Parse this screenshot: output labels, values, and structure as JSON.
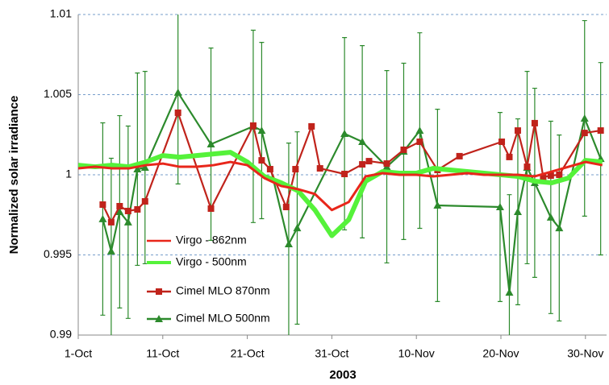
{
  "chart_data": {
    "type": "line",
    "x_label": "2003",
    "y_label": "Normalized solar irradiance",
    "xlim": [
      0,
      62.5
    ],
    "xticks": [
      {
        "value": 0,
        "label": "1-Oct"
      },
      {
        "value": 10,
        "label": "11-Oct"
      },
      {
        "value": 20,
        "label": "21-Oct"
      },
      {
        "value": 30,
        "label": "31-Oct"
      },
      {
        "value": 40,
        "label": "10-Nov"
      },
      {
        "value": 50,
        "label": "20-Nov"
      },
      {
        "value": 60,
        "label": "30-Nov"
      }
    ],
    "ylim": [
      0.99,
      1.01
    ],
    "yticks": [
      0.99,
      0.995,
      1,
      1.005,
      1.01
    ],
    "grid": true,
    "legend": "left",
    "series": [
      {
        "name": "Virgo - 862nm",
        "color": "#e8261a",
        "marker": "none",
        "x": [
          0,
          2,
          4,
          6,
          8,
          10,
          12,
          14,
          16,
          18,
          20,
          22,
          24,
          26,
          28,
          30,
          32,
          34,
          36,
          38,
          40,
          42,
          44,
          46,
          48,
          50,
          52,
          54,
          56,
          58,
          60,
          62
        ],
        "values": [
          1.0004,
          1.0005,
          1.0004,
          1.0004,
          1.0006,
          1.0007,
          1.0005,
          1.0005,
          1.0006,
          1.0008,
          1.0006,
          0.9998,
          0.9993,
          0.9991,
          0.9988,
          0.9978,
          0.9983,
          0.9999,
          1.0001,
          1.0,
          1.0,
          0.9999,
          1.0,
          1.0001,
          1.0,
          1.0,
          1.0,
          0.9999,
          1.0002,
          1.0005,
          1.0008,
          1.0006
        ]
      },
      {
        "name": "Virgo - 500nm",
        "color": "#55f23a",
        "marker": "none",
        "x": [
          0,
          2,
          4,
          6,
          8,
          10,
          12,
          14,
          16,
          18,
          20,
          22,
          24,
          26,
          28,
          30,
          32,
          34,
          36,
          38,
          40,
          42,
          44,
          46,
          48,
          50,
          52,
          54,
          56,
          58,
          60,
          62
        ],
        "values": [
          1.0006,
          1.0005,
          1.0006,
          1.0005,
          1.0008,
          1.0012,
          1.0011,
          1.0012,
          1.0013,
          1.0014,
          1.0008,
          0.9999,
          0.9995,
          0.999,
          0.9978,
          0.9962,
          0.9972,
          0.9996,
          1.0002,
          1.0001,
          1.0001,
          1.0004,
          1.0003,
          1.0002,
          1.0001,
          1.0,
          0.9999,
          0.9996,
          0.9995,
          0.9998,
          1.0009,
          1.0008
        ]
      },
      {
        "name": "Cimel MLO 870nm",
        "color": "#c0231b",
        "marker": "square",
        "x": [
          2.9,
          3.9,
          4.9,
          5.9,
          7.0,
          7.9,
          11.8,
          15.7,
          20.7,
          21.7,
          22.7,
          24.6,
          25.7,
          27.6,
          28.6,
          31.5,
          33.6,
          34.4,
          36.5,
          38.5,
          40.4,
          42.5,
          45.1,
          50.1,
          51.0,
          52.0,
          53.1,
          54.0,
          55.0,
          55.9,
          56.9,
          59.9,
          61.8
        ],
        "values": [
          0.99814,
          0.99704,
          0.99804,
          0.99774,
          0.99784,
          0.99834,
          1.00387,
          0.99789,
          1.00307,
          1.0009,
          1.00035,
          0.99799,
          1.00035,
          1.00302,
          1.0004,
          1.00005,
          1.00065,
          1.00085,
          1.0007,
          1.00156,
          1.00206,
          1.0003,
          1.00116,
          1.00206,
          1.00111,
          1.00276,
          1.0005,
          1.00322,
          0.99985,
          0.99995,
          1.0,
          1.00261,
          1.00276
        ]
      },
      {
        "name": "Cimel MLO 500nm",
        "color": "#2c8a2c",
        "marker": "triangle",
        "x": [
          2.9,
          3.9,
          4.9,
          5.9,
          7.0,
          7.9,
          11.8,
          15.7,
          20.7,
          21.7,
          24.9,
          25.9,
          31.5,
          33.6,
          36.5,
          38.5,
          40.4,
          42.5,
          49.9,
          51.0,
          52.0,
          53.1,
          54.0,
          55.9,
          56.9,
          59.9,
          61.8
        ],
        "values": [
          0.99724,
          0.99523,
          0.99769,
          0.99704,
          1.00035,
          1.00045,
          1.00513,
          1.00191,
          1.00302,
          1.00276,
          0.99568,
          0.99668,
          1.00256,
          1.00206,
          1.0005,
          1.00146,
          1.00276,
          0.99809,
          0.99799,
          0.99266,
          0.99769,
          1.00045,
          0.9995,
          0.99734,
          0.99668,
          1.00352,
          1.001
        ],
        "errors": [
          0.006,
          0.0058,
          0.006,
          0.006,
          0.006,
          0.006,
          0.0057,
          0.006,
          0.006,
          0.0055,
          0.0063,
          0.006,
          0.006,
          0.006,
          0.006,
          0.0055,
          0.0061,
          0.006,
          0.0059,
          0.0061,
          0.0058,
          0.006,
          0.0059,
          0.006,
          0.0058,
          0.0061,
          0.006
        ]
      }
    ]
  }
}
